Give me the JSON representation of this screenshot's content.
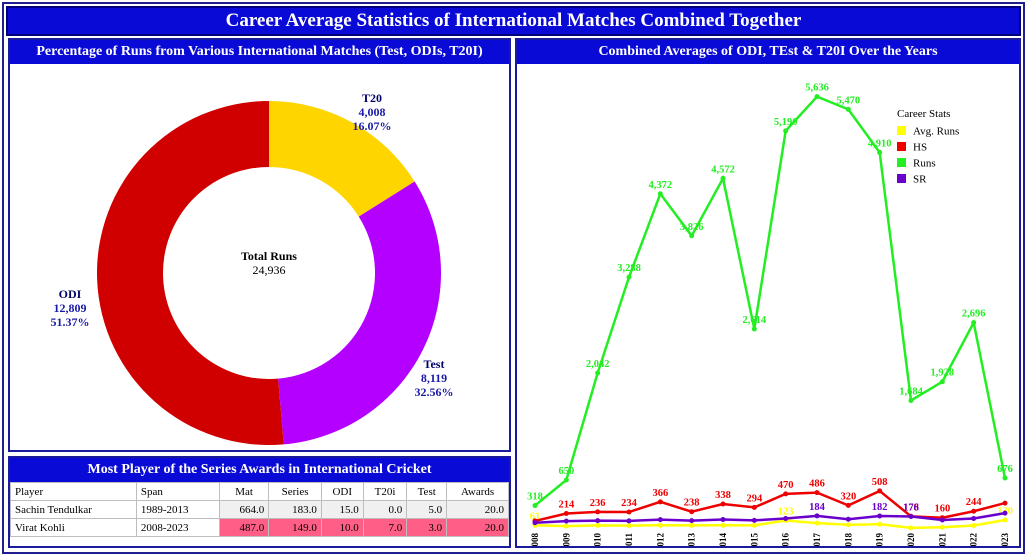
{
  "page_title": "Career Average Statistics of International Matches Combined Together",
  "donut": {
    "title": "Percentage of Runs from Various International Matches (Test, ODIs, T20I)",
    "center_label": "Total Runs",
    "center_value": "24,936",
    "colors": {
      "T20": "#ffd500",
      "Test": "#b300ff",
      "ODI": "#d10000",
      "label": "#1a1aa8"
    }
  },
  "line": {
    "title": "Combined Averages of ODI, TEst & T20I Over the Years",
    "legend_title": "Career Stats"
  },
  "table": {
    "title": "Most Player of the Series Awards in International Cricket",
    "headers": [
      "Player",
      "Span",
      "Mat",
      "Series",
      "ODI",
      "T20i",
      "Test",
      "Awards"
    ],
    "rows": [
      [
        "Sachin Tendulkar",
        "1989-2013",
        "664.0",
        "183.0",
        "15.0",
        "0.0",
        "5.0",
        "20.0"
      ],
      [
        "Virat Kohli",
        "2008-2023",
        "487.0",
        "149.0",
        "10.0",
        "7.0",
        "3.0",
        "20.0"
      ]
    ]
  },
  "chart_data": [
    {
      "type": "pie",
      "title": "Percentage of Runs from Various International Matches (Test, ODIs, T20I)",
      "slices": [
        {
          "name": "T20",
          "value": 4008,
          "value_label": "4,008",
          "pct": "16.07%"
        },
        {
          "name": "Test",
          "value": 8119,
          "value_label": "8,119",
          "pct": "32.56%"
        },
        {
          "name": "ODI",
          "value": 12809,
          "value_label": "12,809",
          "pct": "51.37%"
        }
      ],
      "center_label": "Total Runs",
      "center_value": "24,936"
    },
    {
      "type": "line",
      "title": "Combined Averages of ODI, TEst & T20I Over the Years",
      "x": [
        "2008",
        "2009",
        "2010",
        "2011",
        "2012",
        "2013",
        "2014",
        "2015",
        "2016",
        "2017",
        "2018",
        "2019",
        "2020",
        "2021",
        "2022",
        "2023"
      ],
      "ylim": [
        0,
        5800
      ],
      "legend_title": "Career Stats",
      "legend_position": "top-right",
      "series": [
        {
          "name": "Avg. Runs",
          "color": "#ffff00",
          "values": [
            61,
            50,
            60,
            57,
            62,
            60,
            62,
            60,
            123,
            90,
            68,
            75,
            28,
            36,
            58,
            130
          ],
          "labels": {
            "0": "61",
            "8": "123",
            "15": "130"
          }
        },
        {
          "name": "HS",
          "color": "#ee0000",
          "values": [
            118,
            214,
            236,
            234,
            366,
            238,
            338,
            294,
            470,
            486,
            320,
            508,
            178,
            160,
            244,
            350
          ],
          "labels": {
            "1": "214",
            "2": "236",
            "3": "234",
            "4": "366",
            "5": "238",
            "6": "338",
            "7": "294",
            "8": "470",
            "9": "486",
            "10": "320",
            "11": "508",
            "12": "178",
            "13": "160",
            "14": "244"
          }
        },
        {
          "name": "Runs",
          "color": "#22ee22",
          "values": [
            318,
            650,
            2042,
            3288,
            4372,
            3826,
            4572,
            2614,
            5190,
            5636,
            5470,
            4910,
            1684,
            1928,
            2696,
            676
          ],
          "labels": {
            "0": "318",
            "1": "650",
            "2": "2,042",
            "3": "3,288",
            "4": "4,372",
            "5": "3,826",
            "6": "4,572",
            "7": "2,614",
            "8": "5,190",
            "9": "5,636",
            "10": "5,470",
            "11": "4,910",
            "12": "1,684",
            "13": "1,928",
            "14": "2,696",
            "15": "676"
          }
        },
        {
          "name": "SR",
          "color": "#6a00cc",
          "values": [
            95,
            115,
            122,
            118,
            135,
            122,
            137,
            125,
            150,
            184,
            140,
            182,
            176,
            130,
            150,
            220
          ],
          "labels": {
            "9": "184",
            "11": "182",
            "12": "176"
          }
        }
      ]
    }
  ]
}
